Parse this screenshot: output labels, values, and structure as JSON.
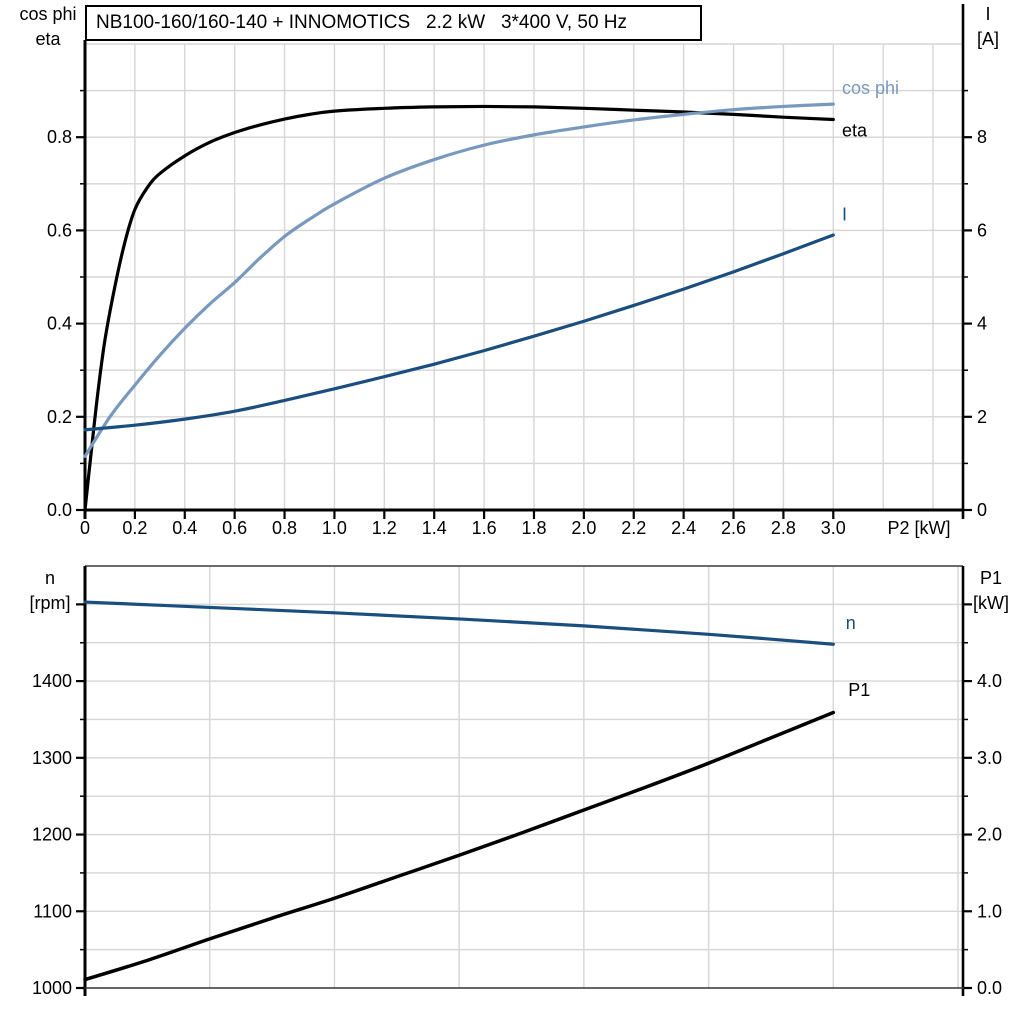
{
  "title_box": {
    "text": "NB100-160/160-140 + INNOMOTICS   2.2 kW   3*400 V, 50 Hz"
  },
  "colors": {
    "black": "#000000",
    "light_blue": "#7899BD",
    "dark_blue": "#1A4E7E",
    "grid": "#D6D6D6",
    "frame": "#595959",
    "text": "#000000"
  },
  "chart_data": [
    {
      "type": "line",
      "name": "efficiency-cosphi-current-vs-P2",
      "x_axis": {
        "label": "P2 [kW]",
        "range": [
          0,
          3.52
        ],
        "grid_step": 0.2,
        "grid_max": 3.4,
        "ticks": [
          {
            "v": 0,
            "label": "0"
          },
          {
            "v": 0.2,
            "label": "0.2"
          },
          {
            "v": 0.4,
            "label": "0.4"
          },
          {
            "v": 0.6,
            "label": "0.6"
          },
          {
            "v": 0.8,
            "label": "0.8"
          },
          {
            "v": 1.0,
            "label": "1.0"
          },
          {
            "v": 1.2,
            "label": "1.2"
          },
          {
            "v": 1.4,
            "label": "1.4"
          },
          {
            "v": 1.6,
            "label": "1.6"
          },
          {
            "v": 1.8,
            "label": "1.8"
          },
          {
            "v": 2.0,
            "label": "2.0"
          },
          {
            "v": 2.2,
            "label": "2.2"
          },
          {
            "v": 2.4,
            "label": "2.4"
          },
          {
            "v": 2.6,
            "label": "2.6"
          },
          {
            "v": 2.8,
            "label": "2.8"
          },
          {
            "v": 3.0,
            "label": "3.0"
          }
        ]
      },
      "y_left": {
        "title": [
          "cos phi",
          "eta"
        ],
        "range": [
          0,
          1.0
        ],
        "minor_step": 0.1,
        "extra_tick_values": [],
        "ticks": [
          {
            "v": 0.0,
            "label": "0.0"
          },
          {
            "v": 0.2,
            "label": "0.2"
          },
          {
            "v": 0.4,
            "label": "0.4"
          },
          {
            "v": 0.6,
            "label": "0.6"
          },
          {
            "v": 0.8,
            "label": "0.8"
          }
        ]
      },
      "y_right": {
        "title": [
          "I",
          "[A]"
        ],
        "range": [
          0,
          10
        ],
        "minor_step": 1,
        "extra_tick_values": [],
        "ticks": [
          {
            "v": 0,
            "label": "0"
          },
          {
            "v": 2,
            "label": "2"
          },
          {
            "v": 4,
            "label": "4"
          },
          {
            "v": 6,
            "label": "6"
          },
          {
            "v": 8,
            "label": "8"
          }
        ]
      },
      "series": [
        {
          "id": "eta",
          "label": "eta",
          "axis": "left",
          "color": "black",
          "width": 3.2,
          "label_at": [
            3.035,
            0.814
          ],
          "points": [
            [
              0,
              0
            ],
            [
              0.02,
              0.1
            ],
            [
              0.05,
              0.245
            ],
            [
              0.08,
              0.365
            ],
            [
              0.12,
              0.48
            ],
            [
              0.16,
              0.575
            ],
            [
              0.2,
              0.645
            ],
            [
              0.25,
              0.692
            ],
            [
              0.3,
              0.722
            ],
            [
              0.4,
              0.76
            ],
            [
              0.5,
              0.789
            ],
            [
              0.6,
              0.81
            ],
            [
              0.7,
              0.826
            ],
            [
              0.8,
              0.839
            ],
            [
              0.9,
              0.849
            ],
            [
              1.0,
              0.856
            ],
            [
              1.2,
              0.862
            ],
            [
              1.4,
              0.865
            ],
            [
              1.6,
              0.866
            ],
            [
              1.8,
              0.865
            ],
            [
              2.0,
              0.862
            ],
            [
              2.2,
              0.858
            ],
            [
              2.4,
              0.854
            ],
            [
              2.6,
              0.849
            ],
            [
              2.8,
              0.843
            ],
            [
              3.0,
              0.838
            ]
          ]
        },
        {
          "id": "cos-phi",
          "label": "cos phi",
          "axis": "left",
          "color": "light_blue",
          "width": 3.2,
          "label_at": [
            3.035,
            0.906
          ],
          "points": [
            [
              0,
              0.115
            ],
            [
              0.1,
              0.2
            ],
            [
              0.2,
              0.268
            ],
            [
              0.3,
              0.332
            ],
            [
              0.4,
              0.39
            ],
            [
              0.5,
              0.442
            ],
            [
              0.6,
              0.488
            ],
            [
              0.7,
              0.54
            ],
            [
              0.8,
              0.587
            ],
            [
              0.9,
              0.624
            ],
            [
              1.0,
              0.657
            ],
            [
              1.2,
              0.712
            ],
            [
              1.4,
              0.752
            ],
            [
              1.6,
              0.783
            ],
            [
              1.8,
              0.805
            ],
            [
              2.0,
              0.822
            ],
            [
              2.2,
              0.837
            ],
            [
              2.4,
              0.849
            ],
            [
              2.6,
              0.859
            ],
            [
              2.8,
              0.866
            ],
            [
              3.0,
              0.871
            ]
          ]
        },
        {
          "id": "current",
          "label": "I",
          "axis": "right",
          "color": "dark_blue",
          "width": 3.2,
          "label_at": [
            3.035,
            6.34
          ],
          "points": [
            [
              0,
              1.72
            ],
            [
              0.2,
              1.82
            ],
            [
              0.4,
              1.95
            ],
            [
              0.6,
              2.12
            ],
            [
              0.8,
              2.35
            ],
            [
              1.0,
              2.6
            ],
            [
              1.2,
              2.86
            ],
            [
              1.4,
              3.13
            ],
            [
              1.6,
              3.42
            ],
            [
              1.8,
              3.73
            ],
            [
              2.0,
              4.05
            ],
            [
              2.2,
              4.39
            ],
            [
              2.4,
              4.74
            ],
            [
              2.6,
              5.11
            ],
            [
              2.8,
              5.5
            ],
            [
              3.0,
              5.9
            ]
          ]
        }
      ]
    },
    {
      "type": "line",
      "name": "speed-inputpower-vs-P2",
      "x_axis": {
        "label": null,
        "range": [
          0,
          3.52
        ],
        "grid_step": 0.5,
        "grid_max": 3.5,
        "ticks": []
      },
      "y_left": {
        "title": [
          "n",
          "[rpm]"
        ],
        "range": [
          1000,
          1550
        ],
        "minor_step": 50,
        "extra_tick_values": [
          1500
        ],
        "ticks": [
          {
            "v": 1000,
            "label": "1000"
          },
          {
            "v": 1100,
            "label": "1100"
          },
          {
            "v": 1200,
            "label": "1200"
          },
          {
            "v": 1300,
            "label": "1300"
          },
          {
            "v": 1400,
            "label": "1400"
          }
        ]
      },
      "y_right": {
        "title": [
          "P1",
          "[kW]"
        ],
        "range": [
          0,
          5.5
        ],
        "minor_step": 0.5,
        "extra_tick_values": [
          5
        ],
        "ticks": [
          {
            "v": 0,
            "label": "0.0"
          },
          {
            "v": 1,
            "label": "1.0"
          },
          {
            "v": 2,
            "label": "2.0"
          },
          {
            "v": 3,
            "label": "3.0"
          },
          {
            "v": 4,
            "label": "4.0"
          }
        ]
      },
      "series": [
        {
          "id": "speed",
          "label": "n",
          "axis": "left",
          "color": "dark_blue",
          "width": 3.2,
          "label_at": [
            3.05,
            1476
          ],
          "points": [
            [
              0,
              1503
            ],
            [
              0.5,
              1496
            ],
            [
              1.0,
              1489
            ],
            [
              1.5,
              1481
            ],
            [
              2.0,
              1472
            ],
            [
              2.5,
              1461
            ],
            [
              3.0,
              1448
            ]
          ]
        },
        {
          "id": "input-power",
          "label": "P1",
          "axis": "right",
          "color": "black",
          "width": 3.5,
          "label_at": [
            3.06,
            3.885
          ],
          "points": [
            [
              0,
              0.11
            ],
            [
              0.25,
              0.36
            ],
            [
              0.5,
              0.64
            ],
            [
              0.75,
              0.91
            ],
            [
              1.0,
              1.17
            ],
            [
              1.25,
              1.45
            ],
            [
              1.5,
              1.73
            ],
            [
              1.75,
              2.02
            ],
            [
              2.0,
              2.32
            ],
            [
              2.25,
              2.62
            ],
            [
              2.5,
              2.93
            ],
            [
              2.75,
              3.26
            ],
            [
              3.0,
              3.59
            ]
          ]
        }
      ]
    }
  ]
}
